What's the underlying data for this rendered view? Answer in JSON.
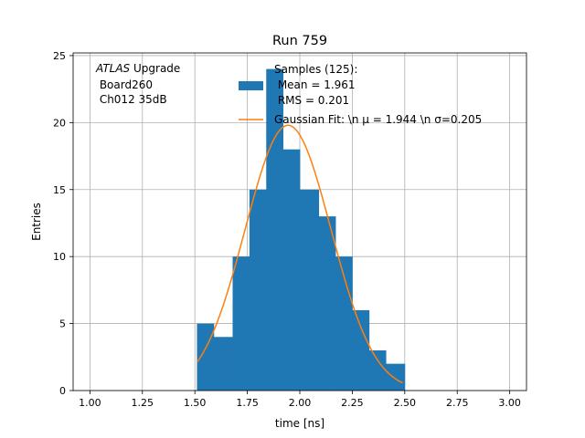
{
  "chart_data": {
    "type": "bar",
    "title": "Run 759",
    "xlabel": "time [ns]",
    "ylabel": "Entries",
    "xlim": [
      0.92,
      3.08
    ],
    "ylim": [
      0,
      25.2
    ],
    "xticks": [
      1.0,
      1.25,
      1.5,
      1.75,
      2.0,
      2.25,
      2.5,
      2.75,
      3.0
    ],
    "xtick_labels": [
      "1.00",
      "1.25",
      "1.50",
      "1.75",
      "2.00",
      "2.25",
      "2.50",
      "2.75",
      "3.00"
    ],
    "yticks": [
      0,
      5,
      10,
      15,
      20,
      25
    ],
    "ytick_labels": [
      "0",
      "5",
      "10",
      "15",
      "20",
      "25"
    ],
    "grid": true,
    "bars": {
      "color": "#1f77b4",
      "bins": [
        {
          "x0": 1.51,
          "x1": 1.59,
          "value": 5
        },
        {
          "x0": 1.59,
          "x1": 1.68,
          "value": 4
        },
        {
          "x0": 1.68,
          "x1": 1.76,
          "value": 10
        },
        {
          "x0": 1.76,
          "x1": 1.84,
          "value": 15
        },
        {
          "x0": 1.84,
          "x1": 1.92,
          "value": 24
        },
        {
          "x0": 1.92,
          "x1": 2.0,
          "value": 18
        },
        {
          "x0": 2.0,
          "x1": 2.09,
          "value": 15
        },
        {
          "x0": 2.09,
          "x1": 2.17,
          "value": 13
        },
        {
          "x0": 2.17,
          "x1": 2.25,
          "value": 10
        },
        {
          "x0": 2.25,
          "x1": 2.33,
          "value": 6
        },
        {
          "x0": 2.33,
          "x1": 2.41,
          "value": 3
        },
        {
          "x0": 2.41,
          "x1": 2.5,
          "value": 2
        }
      ]
    },
    "fit": {
      "color": "#ff7f0e",
      "mu": 1.944,
      "sigma": 0.205,
      "amplitude": 19.8,
      "x_range": [
        1.51,
        2.49
      ]
    },
    "legend": {
      "placement": "top-center",
      "hist_lines": [
        "Samples (125):",
        " Mean = 1.961",
        " RMS = 0.201"
      ],
      "fit_label": "Gaussian Fit: \\n μ = 1.944 \\n σ=0.205"
    },
    "annotation": {
      "italic": "ATLAS",
      "rest": " Upgrade",
      "lines": [
        " Board260",
        " Ch012 35dB"
      ]
    }
  }
}
